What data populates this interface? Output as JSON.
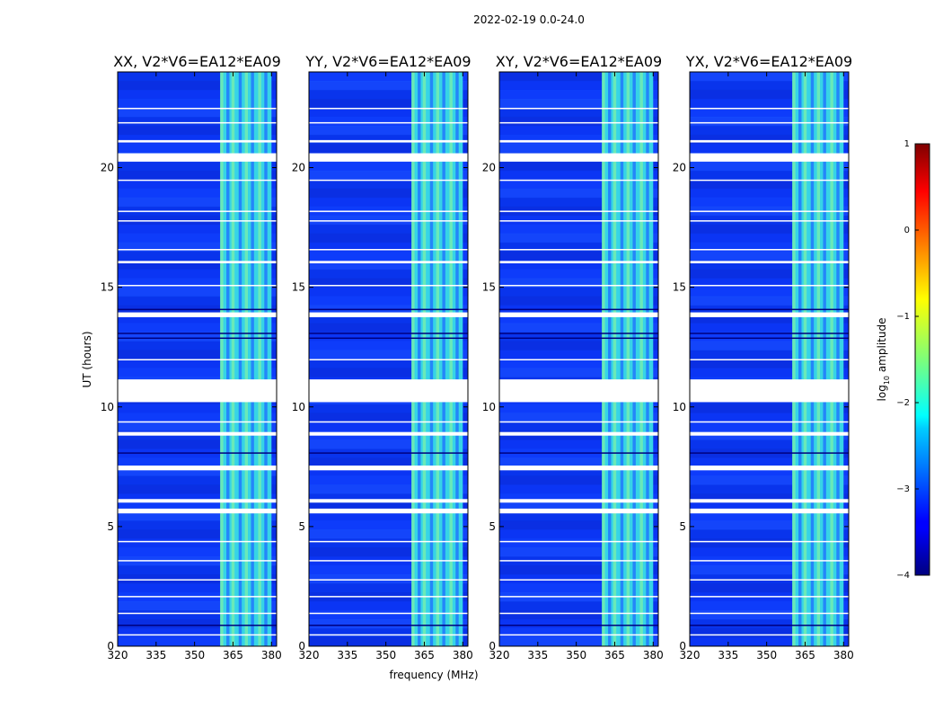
{
  "figure": {
    "suptitle": "2022-02-19 0.0-24.0",
    "xlabel": "frequency (MHz)",
    "ylabel": "UT (hours)"
  },
  "colorbar": {
    "label": "log",
    "label_sub": "10",
    "label_rest": " amplitude",
    "ticks": [
      "1",
      "0",
      "−1",
      "−2",
      "−3",
      "−4"
    ],
    "range": [
      -4,
      1
    ],
    "colormap": "jet"
  },
  "chart_data": {
    "type": "heatmap",
    "xlim": [
      320,
      382
    ],
    "ylim": [
      0,
      24
    ],
    "xticks": [
      320,
      335,
      350,
      365,
      380
    ],
    "xtick_labels": [
      "320",
      "335",
      "350",
      "365",
      "380"
    ],
    "yticks": [
      0,
      5,
      10,
      15,
      20
    ],
    "ytick_labels": [
      "0",
      "5",
      "10",
      "15",
      "20"
    ],
    "band_mhz": [
      360,
      380
    ],
    "background_log_amp": -3.6,
    "band_log_amp": -2.2,
    "flag_value_range": [
      -4,
      1
    ],
    "blank_gaps_hours": [
      [
        5.55,
        5.75
      ],
      [
        6.0,
        6.15
      ],
      [
        7.35,
        7.55
      ],
      [
        8.8,
        8.95
      ],
      [
        10.2,
        11.15
      ],
      [
        13.75,
        13.95
      ],
      [
        16.0,
        16.1
      ],
      [
        20.25,
        20.6
      ],
      [
        21.05,
        21.15
      ]
    ],
    "panels": [
      {
        "title": "XX, V2*V6=EA12*EA09",
        "pol": "XX"
      },
      {
        "title": "YY, V2*V6=EA12*EA09",
        "pol": "YY"
      },
      {
        "title": "XY, V2*V6=EA12*EA09",
        "pol": "XY"
      },
      {
        "title": "YX, V2*V6=EA12*EA09",
        "pol": "YX"
      }
    ]
  }
}
